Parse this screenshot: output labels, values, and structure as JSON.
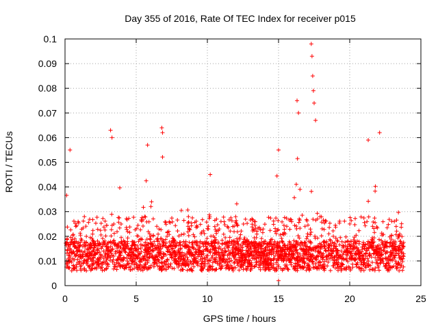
{
  "chart_data": {
    "type": "scatter",
    "title": "Day 355 of 2016, Rate Of TEC Index for receiver p015",
    "xlabel": "GPS time / hours",
    "ylabel": "ROTI / TECUs",
    "xlim": [
      0,
      25
    ],
    "ylim": [
      0,
      0.1
    ],
    "x_ticks": [
      0,
      5,
      10,
      15,
      20,
      25
    ],
    "y_ticks": [
      0,
      0.01,
      0.02,
      0.03,
      0.04,
      0.05,
      0.06,
      0.07,
      0.08,
      0.09,
      0.1
    ],
    "x_tick_labels": [
      "0",
      "5",
      "10",
      "15",
      "20",
      "25"
    ],
    "y_tick_labels": [
      "0",
      "0.01",
      "0.02",
      "0.03",
      "0.04",
      "0.05",
      "0.06",
      "0.07",
      "0.08",
      "0.09",
      "0.1"
    ],
    "grid": true,
    "marker": "+",
    "series": [
      {
        "name": "ROTI",
        "color": "#ff0000",
        "data_range_hours": [
          0.05,
          23.8
        ],
        "typical_range": [
          0.005,
          0.02
        ],
        "notable_points": [
          {
            "x": 0.35,
            "y": 0.055
          },
          {
            "x": 3.2,
            "y": 0.063
          },
          {
            "x": 3.3,
            "y": 0.06
          },
          {
            "x": 5.8,
            "y": 0.057
          },
          {
            "x": 6.8,
            "y": 0.064
          },
          {
            "x": 6.85,
            "y": 0.062
          },
          {
            "x": 10.2,
            "y": 0.045
          },
          {
            "x": 15.0,
            "y": 0.055
          },
          {
            "x": 16.3,
            "y": 0.075
          },
          {
            "x": 16.4,
            "y": 0.07
          },
          {
            "x": 17.3,
            "y": 0.098
          },
          {
            "x": 17.35,
            "y": 0.093
          },
          {
            "x": 17.4,
            "y": 0.085
          },
          {
            "x": 17.45,
            "y": 0.079
          },
          {
            "x": 17.5,
            "y": 0.074
          },
          {
            "x": 17.6,
            "y": 0.067
          },
          {
            "x": 22.1,
            "y": 0.062
          },
          {
            "x": 21.3,
            "y": 0.059
          },
          {
            "x": 15.0,
            "y": 0.002
          }
        ]
      }
    ]
  }
}
